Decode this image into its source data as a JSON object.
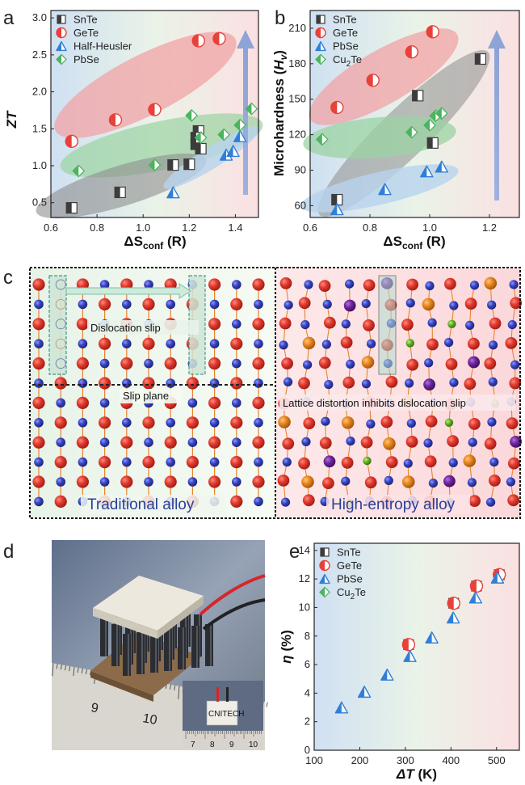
{
  "panels": {
    "a": "a",
    "b": "b",
    "c": "c",
    "d": "d",
    "e": "e"
  },
  "materials": {
    "SnTe": "SnTe",
    "GeTe": "GeTe",
    "HalfHeusler": "Half-Heusler",
    "PbSe": "PbSe",
    "Cu2Te_main": "Cu",
    "Cu2Te_sub": "2",
    "Cu2Te_end": "Te"
  },
  "colors": {
    "SnTe": "#3c3c3c",
    "GeTe": "#e8413a",
    "HalfHeusler": "#2f7fd9",
    "PbSe": "#2f7fd9",
    "PbSe_a": "#4cb35e",
    "Cu2Te": "#4cb35e",
    "red_atom": "#d9342b",
    "blue_atom": "#3440b8",
    "orange_atom": "#e3821d",
    "purple_atom": "#6b2394",
    "green_atom": "#63b22b",
    "bond": "#e8842e"
  },
  "panel_c": {
    "dislocation": "Dislocation slip",
    "slip_plane": "Slip plane",
    "lattice": "Lattice distortion inhibits dislocation slip",
    "traditional": "Traditional alloy",
    "hea": "High-entropy alloy"
  },
  "panel_d": {
    "ruler_9": "9",
    "ruler_10": "10",
    "inset_label": "CNITECH",
    "inset_ticks": [
      "7",
      "8",
      "9",
      "10"
    ]
  },
  "chart_data": [
    {
      "panel": "a",
      "type": "scatter",
      "xlabel_main": "ΔS",
      "xlabel_sub": "conf",
      "xlabel_unit": " (R)",
      "ylabel": "ZT",
      "xlim": [
        0.6,
        1.5
      ],
      "ylim": [
        0.3,
        3.1
      ],
      "xticks": [
        "0.6",
        "0.8",
        "1.0",
        "1.2",
        "1.4"
      ],
      "yticks": [
        "0.5",
        "1.0",
        "1.5",
        "2.0",
        "2.5",
        "3.0"
      ],
      "legend_position": "top-left",
      "series": [
        {
          "name": "SnTe",
          "x": [
            0.69,
            0.9,
            1.13,
            1.2,
            1.23,
            1.24,
            1.23,
            1.25
          ],
          "y": [
            0.43,
            0.64,
            1.01,
            1.02,
            1.29,
            1.47,
            1.38,
            1.23
          ]
        },
        {
          "name": "GeTe",
          "x": [
            0.69,
            0.88,
            1.05,
            1.24,
            1.33
          ],
          "y": [
            1.33,
            1.62,
            1.76,
            2.69,
            2.72
          ]
        },
        {
          "name": "Half-Heusler",
          "x": [
            1.13,
            1.36,
            1.39,
            1.42
          ],
          "y": [
            0.64,
            1.15,
            1.2,
            1.4
          ]
        },
        {
          "name": "PbSe",
          "x": [
            0.72,
            1.05,
            1.21,
            1.25,
            1.35,
            1.42,
            1.47
          ],
          "y": [
            0.93,
            1.01,
            1.68,
            1.38,
            1.42,
            1.55,
            1.77
          ]
        }
      ]
    },
    {
      "panel": "b",
      "type": "scatter",
      "xlabel_main": "ΔS",
      "xlabel_sub": "conf",
      "xlabel_unit": " (R)",
      "ylabel_main": "Microhardness (",
      "ylabel_var": "H",
      "ylabel_sub": "v",
      "ylabel_end": ")",
      "xlim": [
        0.6,
        1.3
      ],
      "ylim": [
        50,
        225
      ],
      "xticks": [
        "0.6",
        "0.8",
        "1.0",
        "1.2"
      ],
      "yticks": [
        "60",
        "90",
        "120",
        "150",
        "180",
        "210"
      ],
      "legend_position": "top-left",
      "series": [
        {
          "name": "SnTe",
          "x": [
            0.69,
            0.96,
            1.01,
            1.17
          ],
          "y": [
            65,
            153,
            113,
            184
          ]
        },
        {
          "name": "GeTe",
          "x": [
            0.69,
            0.81,
            0.94,
            1.01
          ],
          "y": [
            143,
            166,
            190,
            207
          ]
        },
        {
          "name": "PbSe",
          "x": [
            0.69,
            0.85,
            0.99,
            1.04
          ],
          "y": [
            57,
            74,
            89,
            93
          ]
        },
        {
          "name": "Cu2Te",
          "x": [
            0.64,
            0.94,
            1.0,
            1.02,
            1.04
          ],
          "y": [
            116,
            122,
            128,
            136,
            138
          ]
        }
      ]
    },
    {
      "panel": "e",
      "type": "scatter",
      "xlabel_main": "ΔT",
      "xlabel_unit": " (K)",
      "ylabel_main": "η",
      "ylabel_unit": " (%)",
      "xlim": [
        100,
        550
      ],
      "ylim": [
        0,
        14.5
      ],
      "xticks": [
        "100",
        "200",
        "300",
        "400",
        "500"
      ],
      "yticks": [
        "0",
        "2",
        "4",
        "6",
        "8",
        "10",
        "12",
        "14"
      ],
      "legend_position": "top-left",
      "series": [
        {
          "name": "SnTe",
          "x": [
            307,
            406,
            456,
            506
          ],
          "y": [
            7.4,
            10.3,
            11.5,
            12.3
          ]
        },
        {
          "name": "GeTe",
          "x": [
            307,
            406,
            456,
            506
          ],
          "y": [
            7.4,
            10.3,
            11.5,
            12.3
          ]
        },
        {
          "name": "PbSe",
          "x": [
            160,
            210,
            260,
            310,
            358,
            405,
            454,
            502
          ],
          "y": [
            3.0,
            4.1,
            5.3,
            6.6,
            7.9,
            9.3,
            10.7,
            12.1
          ]
        },
        {
          "name": "Cu2Te",
          "x": [],
          "y": []
        }
      ]
    }
  ]
}
